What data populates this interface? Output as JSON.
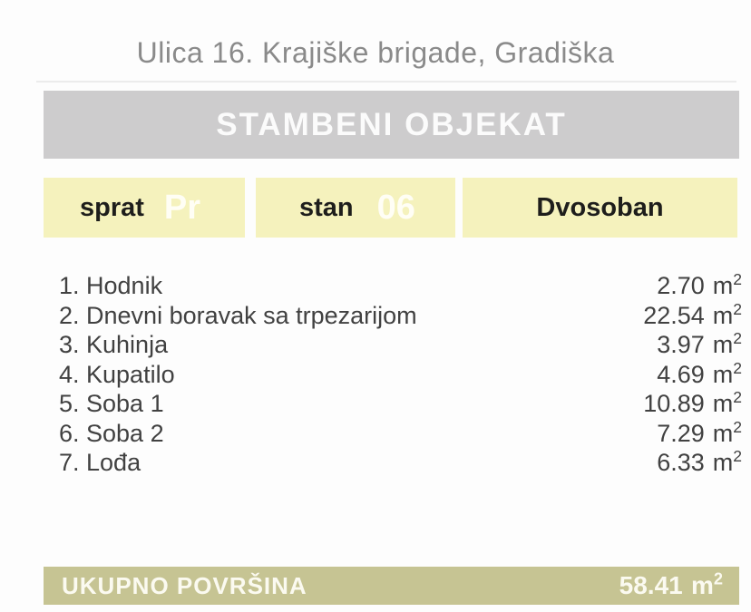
{
  "page": {
    "title": "Ulica 16. Krajiške brigade, Gradiška"
  },
  "banner": {
    "label": "STAMBENI OBJEKAT"
  },
  "info_boxes": {
    "floor": {
      "label": "sprat",
      "value": "Pr"
    },
    "unit": {
      "label": "stan",
      "value": "06"
    },
    "layout": {
      "label": "Dvosoban"
    }
  },
  "area_unit": {
    "base": "m",
    "sup": "2"
  },
  "rooms": {
    "items": [
      {
        "label": "1. Hodnik",
        "area": "2.70"
      },
      {
        "label": "2. Dnevni boravak sa trpezarijom",
        "area": "22.54"
      },
      {
        "label": "3. Kuhinja",
        "area": "3.97"
      },
      {
        "label": "4. Kupatilo",
        "area": "4.69"
      },
      {
        "label": "5. Soba 1",
        "area": "10.89"
      },
      {
        "label": "6. Soba 2",
        "area": "7.29"
      },
      {
        "label": "7. Lođa",
        "area": "6.33"
      }
    ]
  },
  "total": {
    "label": "UKUPNO POVRŠINA",
    "value": "58.41"
  },
  "colors": {
    "accent_yellow": "#f5f2bd",
    "banner_gray": "#cdcccd",
    "total_olive": "#c6c493",
    "title_gray": "#8a8a8a",
    "text_dark": "#414141"
  }
}
